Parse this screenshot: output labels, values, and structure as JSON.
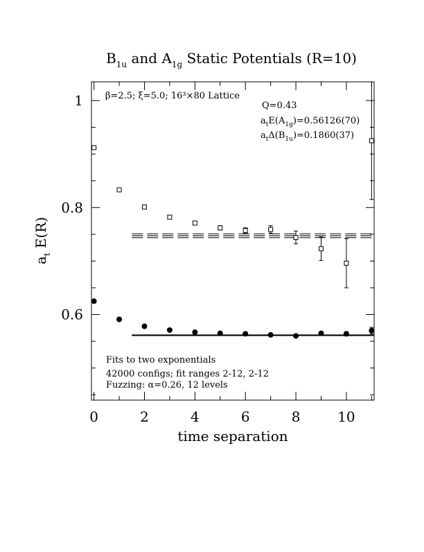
{
  "chart_data": {
    "type": "scatter",
    "title": {
      "prefix": "B",
      "sub1": "1u",
      "middle": " and A",
      "sub2": "1g",
      "suffix": " Static Potentials (R=10)"
    },
    "xlabel": "time separation",
    "ylabel": {
      "main": "a",
      "sub": "t",
      "rest": " E(R)"
    },
    "xlim": [
      -0.1,
      11.1
    ],
    "ylim": [
      0.44,
      1.035
    ],
    "xticks": [
      0,
      2,
      4,
      6,
      8,
      10
    ],
    "xtick_labels": [
      "0",
      "2",
      "4",
      "6",
      "8",
      "10"
    ],
    "yticks": [
      0.6,
      0.8,
      1.0
    ],
    "ytick_labels": [
      "0.6",
      "0.8",
      "1"
    ],
    "grid": false,
    "lattice_info": "β=2.5; ξ=5.0; 16³×80 Lattice",
    "fit_info": {
      "q": "Q=0.43",
      "a1g_prefix": "a",
      "a1g_sub": "t",
      "a1g_mid": "E(A",
      "a1g_sub2": "1g",
      "a1g_value": ")=0.56126(70)",
      "b1u_prefix": "a",
      "b1u_sub": "t",
      "b1u_mid": "Δ(B",
      "b1u_sub2": "1u",
      "b1u_value": ")=0.1860(37)"
    },
    "notes": [
      "Fits to two exponentials",
      "42000 configs; fit ranges 2-12, 2-12",
      "Fuzzing: α=0.26, 12 levels"
    ],
    "series": [
      {
        "marker": "filled-circle",
        "points": [
          {
            "x": 0,
            "y": 0.625,
            "err": 0.002
          },
          {
            "x": 1,
            "y": 0.591,
            "err": 0.002
          },
          {
            "x": 2,
            "y": 0.578,
            "err": 0.002
          },
          {
            "x": 3,
            "y": 0.571,
            "err": 0.002
          },
          {
            "x": 4,
            "y": 0.567,
            "err": 0.002
          },
          {
            "x": 5,
            "y": 0.565,
            "err": 0.002
          },
          {
            "x": 6,
            "y": 0.564,
            "err": 0.002
          },
          {
            "x": 7,
            "y": 0.562,
            "err": 0.002
          },
          {
            "x": 8,
            "y": 0.56,
            "err": 0.002
          },
          {
            "x": 9,
            "y": 0.565,
            "err": 0.003
          },
          {
            "x": 10,
            "y": 0.564,
            "err": 0.004
          },
          {
            "x": 11,
            "y": 0.57,
            "err": 0.006
          }
        ],
        "fit": {
          "x_from": 1.5,
          "x_to": 11.1,
          "center": 0.56126,
          "half_width": 0.0007
        }
      },
      {
        "marker": "open-square",
        "points": [
          {
            "x": 0,
            "y": 0.912,
            "err": 0.002
          },
          {
            "x": 1,
            "y": 0.833,
            "err": 0.002
          },
          {
            "x": 2,
            "y": 0.801,
            "err": 0.002
          },
          {
            "x": 3,
            "y": 0.782,
            "err": 0.003
          },
          {
            "x": 4,
            "y": 0.771,
            "err": 0.003
          },
          {
            "x": 5,
            "y": 0.762,
            "err": 0.004
          },
          {
            "x": 6,
            "y": 0.757,
            "err": 0.005
          },
          {
            "x": 7,
            "y": 0.759,
            "err": 0.007
          },
          {
            "x": 8,
            "y": 0.744,
            "err": 0.012
          },
          {
            "x": 9,
            "y": 0.723,
            "err": 0.022
          },
          {
            "x": 10,
            "y": 0.696,
            "err": 0.046
          },
          {
            "x": 11,
            "y": 0.925,
            "err": 0.11
          }
        ],
        "fit": {
          "x_from": 1.5,
          "x_to": 11.1,
          "center": 0.7473,
          "half_width": 0.0036
        }
      }
    ]
  }
}
